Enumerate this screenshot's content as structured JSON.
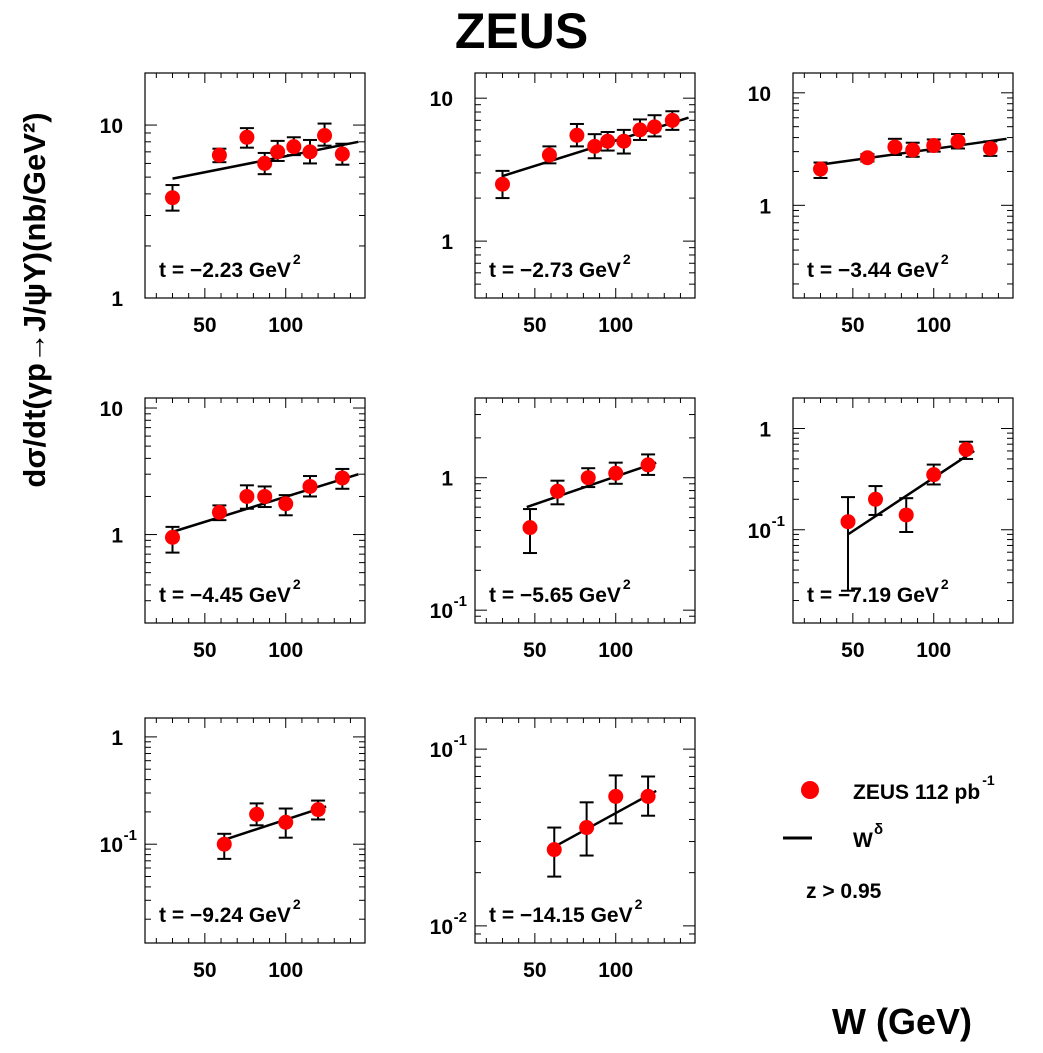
{
  "title": "ZEUS",
  "xlabel": "W (GeV)",
  "ylabel": "dσ/dt(γp→J/ψY)(nb/GeV²)",
  "legend": {
    "points_label": "ZEUS 112 pb",
    "points_sup": "-1",
    "line_label": "W",
    "line_sup": "δ",
    "cut_text": "z > 0.95"
  },
  "colors": {
    "points": "#ff0000",
    "line": "#000000",
    "axes": "#000000"
  },
  "chart_data": [
    {
      "type": "scatter",
      "t_label": "t = −2.23 GeV",
      "t_sup": "2",
      "log_y": true,
      "ylim": [
        1,
        20
      ],
      "xlim": [
        13,
        149
      ],
      "xticks": [
        50,
        100
      ],
      "yticks": [
        1,
        10
      ],
      "x": [
        30,
        59,
        76,
        87,
        95,
        105,
        115,
        124,
        135
      ],
      "y": [
        3.8,
        6.7,
        8.5,
        6.0,
        7.0,
        7.5,
        7.0,
        8.7,
        6.8
      ],
      "yerr": [
        [
          3.2,
          4.5
        ],
        [
          6.1,
          7.3
        ],
        [
          7.4,
          9.6
        ],
        [
          5.2,
          6.9
        ],
        [
          6.2,
          8.1
        ],
        [
          6.7,
          8.5
        ],
        [
          6.0,
          8.2
        ],
        [
          7.6,
          10.2
        ],
        [
          5.9,
          7.8
        ]
      ],
      "fit": [
        [
          30,
          4.9
        ],
        [
          145,
          8.0
        ]
      ]
    },
    {
      "type": "scatter",
      "t_label": "t = −2.73 GeV",
      "t_sup": "2",
      "log_y": true,
      "ylim": [
        0.4,
        15
      ],
      "xlim": [
        13,
        149
      ],
      "xticks": [
        50,
        100
      ],
      "yticks": [
        1,
        10
      ],
      "x": [
        30,
        59,
        76,
        87,
        95,
        105,
        115,
        124,
        135
      ],
      "y": [
        2.5,
        4.0,
        5.5,
        4.6,
        5.0,
        5.0,
        6.0,
        6.3,
        7.0
      ],
      "yerr": [
        [
          2.0,
          3.1
        ],
        [
          3.5,
          4.6
        ],
        [
          4.6,
          6.6
        ],
        [
          3.8,
          5.6
        ],
        [
          4.3,
          5.8
        ],
        [
          4.1,
          6.0
        ],
        [
          5.1,
          7.1
        ],
        [
          5.4,
          7.6
        ],
        [
          6.0,
          8.1
        ]
      ],
      "fit": [
        [
          30,
          2.85
        ],
        [
          145,
          7.3
        ]
      ]
    },
    {
      "type": "scatter",
      "t_label": "t = −3.44 GeV",
      "t_sup": "2",
      "log_y": true,
      "ylim": [
        0.15,
        15
      ],
      "xlim": [
        13,
        149
      ],
      "xticks": [
        50,
        100
      ],
      "yticks": [
        1,
        10
      ],
      "x": [
        30,
        59,
        76,
        87,
        100,
        115,
        135
      ],
      "y": [
        2.1,
        2.65,
        3.3,
        3.1,
        3.4,
        3.7,
        3.2
      ],
      "yerr": [
        [
          1.75,
          2.4
        ],
        [
          2.45,
          2.85
        ],
        [
          2.8,
          3.9
        ],
        [
          2.7,
          3.6
        ],
        [
          3.0,
          3.85
        ],
        [
          3.2,
          4.3
        ],
        [
          2.75,
          3.7
        ]
      ],
      "fit": [
        [
          30,
          2.3
        ],
        [
          145,
          3.9
        ]
      ]
    },
    {
      "type": "scatter",
      "t_label": "t = −4.45 GeV",
      "t_sup": "2",
      "log_y": true,
      "ylim": [
        0.2,
        12
      ],
      "xlim": [
        13,
        149
      ],
      "xticks": [
        50,
        100
      ],
      "yticks": [
        1,
        10
      ],
      "x": [
        30,
        59,
        76,
        87,
        100,
        115,
        135
      ],
      "y": [
        0.95,
        1.5,
        2.0,
        2.0,
        1.75,
        2.4,
        2.8
      ],
      "yerr": [
        [
          0.72,
          1.15
        ],
        [
          1.3,
          1.7
        ],
        [
          1.6,
          2.45
        ],
        [
          1.65,
          2.4
        ],
        [
          1.42,
          2.05
        ],
        [
          2.0,
          2.9
        ],
        [
          2.3,
          3.3
        ]
      ],
      "fit": [
        [
          30,
          1.05
        ],
        [
          145,
          3.0
        ]
      ]
    },
    {
      "type": "scatter",
      "t_label": "t = −5.65 GeV",
      "t_sup": "2",
      "log_y": true,
      "ylim": [
        0.08,
        4
      ],
      "xlim": [
        13,
        149
      ],
      "xticks": [
        50,
        100
      ],
      "yticks": [
        1,
        0.1
      ],
      "x": [
        47,
        64,
        83,
        100,
        120
      ],
      "y": [
        0.42,
        0.79,
        1.0,
        1.08,
        1.25
      ],
      "yerr": [
        [
          0.27,
          0.58
        ],
        [
          0.63,
          0.95
        ],
        [
          0.85,
          1.18
        ],
        [
          0.9,
          1.3
        ],
        [
          1.05,
          1.5
        ]
      ],
      "fit": [
        [
          45,
          0.6
        ],
        [
          125,
          1.3
        ]
      ]
    },
    {
      "type": "scatter",
      "t_label": "t = −7.19 GeV",
      "t_sup": "2",
      "log_y": true,
      "ylim": [
        0.012,
        2
      ],
      "xlim": [
        13,
        149
      ],
      "xticks": [
        50,
        100
      ],
      "yticks": [
        1,
        0.1
      ],
      "x": [
        47,
        64,
        83,
        100,
        120
      ],
      "y": [
        0.12,
        0.2,
        0.14,
        0.35,
        0.62
      ],
      "yerr": [
        [
          0.025,
          0.21
        ],
        [
          0.14,
          0.27
        ],
        [
          0.095,
          0.205
        ],
        [
          0.28,
          0.44
        ],
        [
          0.5,
          0.74
        ]
      ],
      "fit": [
        [
          47,
          0.09
        ],
        [
          125,
          0.6
        ]
      ]
    },
    {
      "type": "scatter",
      "t_label": "t = −9.24 GeV",
      "t_sup": "2",
      "log_y": true,
      "ylim": [
        0.012,
        1.5
      ],
      "xlim": [
        13,
        149
      ],
      "xticks": [
        50,
        100
      ],
      "yticks": [
        1,
        0.1
      ],
      "x": [
        62,
        82,
        100,
        120
      ],
      "y": [
        0.1,
        0.19,
        0.16,
        0.21
      ],
      "yerr": [
        [
          0.073,
          0.125
        ],
        [
          0.15,
          0.24
        ],
        [
          0.115,
          0.215
        ],
        [
          0.17,
          0.255
        ]
      ],
      "fit": [
        [
          62,
          0.11
        ],
        [
          125,
          0.225
        ]
      ]
    },
    {
      "type": "scatter",
      "t_label": "t = −14.15 GeV",
      "t_sup": "2",
      "log_y": true,
      "ylim": [
        0.008,
        0.15
      ],
      "xlim": [
        13,
        149
      ],
      "xticks": [
        50,
        100
      ],
      "yticks": [
        0.1,
        0.01
      ],
      "x": [
        62,
        82,
        100,
        120
      ],
      "y": [
        0.027,
        0.036,
        0.054,
        0.054
      ],
      "yerr": [
        [
          0.019,
          0.036
        ],
        [
          0.025,
          0.05
        ],
        [
          0.038,
          0.071
        ],
        [
          0.042,
          0.07
        ]
      ],
      "fit": [
        [
          62,
          0.028
        ],
        [
          125,
          0.058
        ]
      ]
    }
  ]
}
